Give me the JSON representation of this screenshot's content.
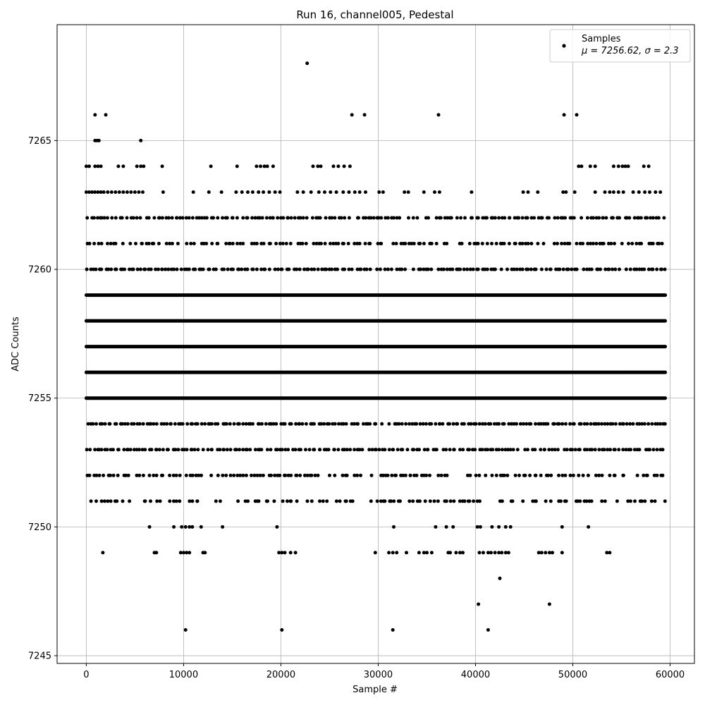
{
  "chart_data": {
    "type": "scatter",
    "title": "Run 16, channel005, Pedestal",
    "xlabel": "Sample #",
    "ylabel": "ADC Counts",
    "xlim": [
      -3000,
      62500
    ],
    "ylim": [
      7244.7,
      7269.5
    ],
    "xticks": [
      0,
      10000,
      20000,
      30000,
      40000,
      50000,
      60000
    ],
    "xtick_labels": [
      "0",
      "10000",
      "20000",
      "30000",
      "40000",
      "50000",
      "60000"
    ],
    "yticks": [
      7245,
      7250,
      7255,
      7260,
      7265
    ],
    "ytick_labels": [
      "7245",
      "7250",
      "7255",
      "7260",
      "7265"
    ],
    "grid": true,
    "legend": {
      "placement": "top-right",
      "series_label": "Samples",
      "stats_label": "μ = 7256.62, σ = 2.3"
    },
    "marker_color": "#000000",
    "x_range": [
      0,
      59500
    ],
    "series": [
      {
        "name": "Samples",
        "levels": [
          {
            "y": 7262,
            "coverage": 0.85
          },
          {
            "y": 7261,
            "coverage": 0.75
          },
          {
            "y": 7260,
            "coverage": 0.92
          },
          {
            "y": 7259,
            "coverage": 1.0
          },
          {
            "y": 7258,
            "coverage": 1.0
          },
          {
            "y": 7257,
            "coverage": 1.0
          },
          {
            "y": 7256,
            "coverage": 1.0
          },
          {
            "y": 7255,
            "coverage": 1.0
          },
          {
            "y": 7254,
            "coverage": 0.97
          },
          {
            "y": 7253,
            "coverage": 0.93
          },
          {
            "y": 7252,
            "coverage": 0.7
          },
          {
            "y": 7251,
            "coverage": 0.6
          }
        ],
        "points": [
          [
            22700,
            7268
          ],
          [
            900,
            7266
          ],
          [
            2000,
            7266
          ],
          [
            27300,
            7266
          ],
          [
            28600,
            7266
          ],
          [
            36200,
            7266
          ],
          [
            49100,
            7266
          ],
          [
            50400,
            7266
          ],
          [
            900,
            7265
          ],
          [
            1100,
            7265
          ],
          [
            1300,
            7265
          ],
          [
            5600,
            7265
          ],
          [
            0,
            7264
          ],
          [
            300,
            7264
          ],
          [
            900,
            7264
          ],
          [
            1200,
            7264
          ],
          [
            1500,
            7264
          ],
          [
            3300,
            7264
          ],
          [
            3800,
            7264
          ],
          [
            5200,
            7264
          ],
          [
            5600,
            7264
          ],
          [
            5900,
            7264
          ],
          [
            7800,
            7264
          ],
          [
            12800,
            7264
          ],
          [
            15500,
            7264
          ],
          [
            17500,
            7264
          ],
          [
            17900,
            7264
          ],
          [
            18300,
            7264
          ],
          [
            18600,
            7264
          ],
          [
            19200,
            7264
          ],
          [
            23300,
            7264
          ],
          [
            23800,
            7264
          ],
          [
            24100,
            7264
          ],
          [
            25400,
            7264
          ],
          [
            25900,
            7264
          ],
          [
            26500,
            7264
          ],
          [
            27100,
            7264
          ],
          [
            50600,
            7264
          ],
          [
            50900,
            7264
          ],
          [
            51800,
            7264
          ],
          [
            52300,
            7264
          ],
          [
            54200,
            7264
          ],
          [
            54700,
            7264
          ],
          [
            55100,
            7264
          ],
          [
            55400,
            7264
          ],
          [
            55700,
            7264
          ],
          [
            57300,
            7264
          ],
          [
            57800,
            7264
          ],
          [
            0,
            7263
          ],
          [
            300,
            7263
          ],
          [
            600,
            7263
          ],
          [
            900,
            7263
          ],
          [
            1200,
            7263
          ],
          [
            1500,
            7263
          ],
          [
            1800,
            7263
          ],
          [
            2200,
            7263
          ],
          [
            2600,
            7263
          ],
          [
            3000,
            7263
          ],
          [
            3400,
            7263
          ],
          [
            3800,
            7263
          ],
          [
            4200,
            7263
          ],
          [
            4600,
            7263
          ],
          [
            5000,
            7263
          ],
          [
            5400,
            7263
          ],
          [
            5800,
            7263
          ],
          [
            7900,
            7263
          ],
          [
            11000,
            7263
          ],
          [
            12600,
            7263
          ],
          [
            13900,
            7263
          ],
          [
            15400,
            7263
          ],
          [
            16000,
            7263
          ],
          [
            16600,
            7263
          ],
          [
            17100,
            7263
          ],
          [
            17700,
            7263
          ],
          [
            18200,
            7263
          ],
          [
            18800,
            7263
          ],
          [
            19400,
            7263
          ],
          [
            19900,
            7263
          ],
          [
            21700,
            7263
          ],
          [
            22300,
            7263
          ],
          [
            23100,
            7263
          ],
          [
            23900,
            7263
          ],
          [
            24500,
            7263
          ],
          [
            25100,
            7263
          ],
          [
            25700,
            7263
          ],
          [
            26400,
            7263
          ],
          [
            27000,
            7263
          ],
          [
            27600,
            7263
          ],
          [
            28100,
            7263
          ],
          [
            28700,
            7263
          ],
          [
            30100,
            7263
          ],
          [
            30500,
            7263
          ],
          [
            32700,
            7263
          ],
          [
            33100,
            7263
          ],
          [
            34700,
            7263
          ],
          [
            35800,
            7263
          ],
          [
            36300,
            7263
          ],
          [
            39600,
            7263
          ],
          [
            44900,
            7263
          ],
          [
            45400,
            7263
          ],
          [
            46400,
            7263
          ],
          [
            49000,
            7263
          ],
          [
            49300,
            7263
          ],
          [
            50200,
            7263
          ],
          [
            52300,
            7263
          ],
          [
            53300,
            7263
          ],
          [
            53800,
            7263
          ],
          [
            54200,
            7263
          ],
          [
            54700,
            7263
          ],
          [
            55200,
            7263
          ],
          [
            56200,
            7263
          ],
          [
            56800,
            7263
          ],
          [
            57400,
            7263
          ],
          [
            57900,
            7263
          ],
          [
            58500,
            7263
          ],
          [
            59000,
            7263
          ],
          [
            6500,
            7250
          ],
          [
            9000,
            7250
          ],
          [
            9800,
            7250
          ],
          [
            10200,
            7250
          ],
          [
            10600,
            7250
          ],
          [
            10900,
            7250
          ],
          [
            11800,
            7250
          ],
          [
            14000,
            7250
          ],
          [
            19600,
            7250
          ],
          [
            31600,
            7250
          ],
          [
            35900,
            7250
          ],
          [
            37000,
            7250
          ],
          [
            37700,
            7250
          ],
          [
            40200,
            7250
          ],
          [
            40500,
            7250
          ],
          [
            41700,
            7250
          ],
          [
            42400,
            7250
          ],
          [
            43100,
            7250
          ],
          [
            43600,
            7250
          ],
          [
            48900,
            7250
          ],
          [
            51600,
            7250
          ],
          [
            1700,
            7249
          ],
          [
            7000,
            7249
          ],
          [
            7200,
            7249
          ],
          [
            9700,
            7249
          ],
          [
            10000,
            7249
          ],
          [
            10300,
            7249
          ],
          [
            10600,
            7249
          ],
          [
            12000,
            7249
          ],
          [
            12200,
            7249
          ],
          [
            19800,
            7249
          ],
          [
            20100,
            7249
          ],
          [
            20400,
            7249
          ],
          [
            21000,
            7249
          ],
          [
            21500,
            7249
          ],
          [
            29700,
            7249
          ],
          [
            31100,
            7249
          ],
          [
            31500,
            7249
          ],
          [
            31900,
            7249
          ],
          [
            32900,
            7249
          ],
          [
            34200,
            7249
          ],
          [
            34700,
            7249
          ],
          [
            35000,
            7249
          ],
          [
            35500,
            7249
          ],
          [
            37200,
            7249
          ],
          [
            37400,
            7249
          ],
          [
            38000,
            7249
          ],
          [
            38400,
            7249
          ],
          [
            38700,
            7249
          ],
          [
            40400,
            7249
          ],
          [
            40800,
            7249
          ],
          [
            41300,
            7249
          ],
          [
            41600,
            7249
          ],
          [
            42000,
            7249
          ],
          [
            42400,
            7249
          ],
          [
            42700,
            7249
          ],
          [
            43100,
            7249
          ],
          [
            43400,
            7249
          ],
          [
            46500,
            7249
          ],
          [
            46800,
            7249
          ],
          [
            47200,
            7249
          ],
          [
            47600,
            7249
          ],
          [
            47900,
            7249
          ],
          [
            48900,
            7249
          ],
          [
            53500,
            7249
          ],
          [
            53800,
            7249
          ],
          [
            42500,
            7248
          ],
          [
            40300,
            7247
          ],
          [
            47600,
            7247
          ],
          [
            10200,
            7246
          ],
          [
            20100,
            7246
          ],
          [
            31500,
            7246
          ],
          [
            41300,
            7246
          ]
        ]
      }
    ]
  }
}
